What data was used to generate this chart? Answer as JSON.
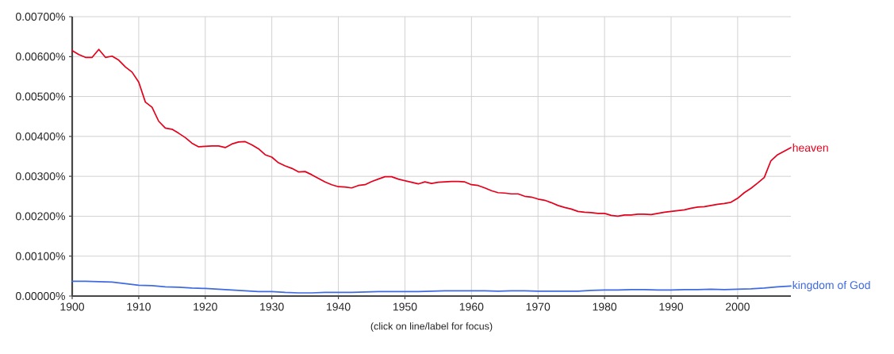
{
  "chart_data": {
    "type": "line",
    "xlim": [
      1900,
      2008
    ],
    "ylim": [
      0,
      0.007
    ],
    "xticks": [
      1900,
      1910,
      1920,
      1930,
      1940,
      1950,
      1960,
      1970,
      1980,
      1990,
      2000
    ],
    "yticks": [
      {
        "value": 0,
        "label": "0.00000%"
      },
      {
        "value": 0.001,
        "label": "0.00100%"
      },
      {
        "value": 0.002,
        "label": "0.00200%"
      },
      {
        "value": 0.003,
        "label": "0.00300%"
      },
      {
        "value": 0.004,
        "label": "0.00400%"
      },
      {
        "value": 0.005,
        "label": "0.00500%"
      },
      {
        "value": 0.006,
        "label": "0.00600%"
      },
      {
        "value": 0.007,
        "label": "0.00700%"
      }
    ],
    "grid": true,
    "annotations": [
      "(click on line/label for focus)"
    ],
    "series": [
      {
        "name": "heaven",
        "color": "#e5001c",
        "x": [
          1900,
          1901,
          1902,
          1903,
          1904,
          1905,
          1906,
          1907,
          1908,
          1909,
          1910,
          1911,
          1912,
          1913,
          1914,
          1915,
          1916,
          1917,
          1918,
          1919,
          1920,
          1921,
          1922,
          1923,
          1924,
          1925,
          1926,
          1927,
          1928,
          1929,
          1930,
          1931,
          1932,
          1933,
          1934,
          1935,
          1936,
          1937,
          1938,
          1939,
          1940,
          1941,
          1942,
          1943,
          1944,
          1945,
          1946,
          1947,
          1948,
          1949,
          1950,
          1951,
          1952,
          1953,
          1954,
          1955,
          1956,
          1957,
          1958,
          1959,
          1960,
          1961,
          1962,
          1963,
          1964,
          1965,
          1966,
          1967,
          1968,
          1969,
          1970,
          1971,
          1972,
          1973,
          1974,
          1975,
          1976,
          1977,
          1978,
          1979,
          1980,
          1981,
          1982,
          1983,
          1984,
          1985,
          1986,
          1987,
          1988,
          1989,
          1990,
          1991,
          1992,
          1993,
          1994,
          1995,
          1996,
          1997,
          1998,
          1999,
          2000,
          2001,
          2002,
          2003,
          2004,
          2005,
          2006,
          2007,
          2008
        ],
        "values": [
          0.00615,
          0.00605,
          0.00598,
          0.00598,
          0.00618,
          0.00598,
          0.00601,
          0.00591,
          0.00574,
          0.00561,
          0.00536,
          0.00486,
          0.00473,
          0.00438,
          0.00421,
          0.00418,
          0.00408,
          0.00397,
          0.00383,
          0.00374,
          0.00375,
          0.00376,
          0.00376,
          0.00372,
          0.00381,
          0.00386,
          0.00387,
          0.00379,
          0.00369,
          0.00354,
          0.00348,
          0.00334,
          0.00326,
          0.0032,
          0.00311,
          0.00312,
          0.00304,
          0.00295,
          0.00286,
          0.00279,
          0.00274,
          0.00273,
          0.00271,
          0.00277,
          0.00279,
          0.00287,
          0.00293,
          0.00299,
          0.00299,
          0.00293,
          0.00289,
          0.00285,
          0.00281,
          0.00286,
          0.00282,
          0.00285,
          0.00286,
          0.00287,
          0.00287,
          0.00286,
          0.00279,
          0.00277,
          0.00271,
          0.00264,
          0.00259,
          0.00258,
          0.00256,
          0.00256,
          0.0025,
          0.00248,
          0.00243,
          0.0024,
          0.00234,
          0.00227,
          0.00222,
          0.00218,
          0.00212,
          0.0021,
          0.00209,
          0.00207,
          0.00207,
          0.00202,
          0.002,
          0.00203,
          0.00203,
          0.00205,
          0.00205,
          0.00204,
          0.00207,
          0.0021,
          0.00212,
          0.00214,
          0.00216,
          0.0022,
          0.00223,
          0.00224,
          0.00227,
          0.0023,
          0.00232,
          0.00235,
          0.00245,
          0.00259,
          0.0027,
          0.00283,
          0.00297,
          0.00339,
          0.00354,
          0.00363,
          0.00372
        ]
      },
      {
        "name": "kingdom of God",
        "color": "#3f6ae0",
        "x": [
          1900,
          1902,
          1904,
          1906,
          1908,
          1910,
          1912,
          1914,
          1916,
          1918,
          1920,
          1922,
          1924,
          1926,
          1928,
          1930,
          1932,
          1934,
          1936,
          1938,
          1940,
          1942,
          1944,
          1946,
          1948,
          1950,
          1952,
          1954,
          1956,
          1958,
          1960,
          1962,
          1964,
          1966,
          1968,
          1970,
          1972,
          1974,
          1976,
          1978,
          1980,
          1982,
          1984,
          1986,
          1988,
          1990,
          1992,
          1994,
          1996,
          1998,
          2000,
          2002,
          2004,
          2006,
          2008
        ],
        "values": [
          0.00037,
          0.00037,
          0.00036,
          0.00035,
          0.00031,
          0.00027,
          0.00026,
          0.00023,
          0.00022,
          0.0002,
          0.00019,
          0.00017,
          0.00015,
          0.00013,
          0.00011,
          0.00011,
          9e-05,
          8e-05,
          8e-05,
          9e-05,
          9e-05,
          9e-05,
          0.0001,
          0.00011,
          0.00011,
          0.00011,
          0.00011,
          0.00012,
          0.00013,
          0.00013,
          0.00013,
          0.00013,
          0.00012,
          0.00013,
          0.00013,
          0.00012,
          0.00012,
          0.00012,
          0.00012,
          0.00014,
          0.00015,
          0.00015,
          0.00016,
          0.00016,
          0.00015,
          0.00015,
          0.00016,
          0.00016,
          0.00017,
          0.00016,
          0.00017,
          0.00018,
          0.0002,
          0.00023,
          0.00025
        ]
      }
    ]
  }
}
